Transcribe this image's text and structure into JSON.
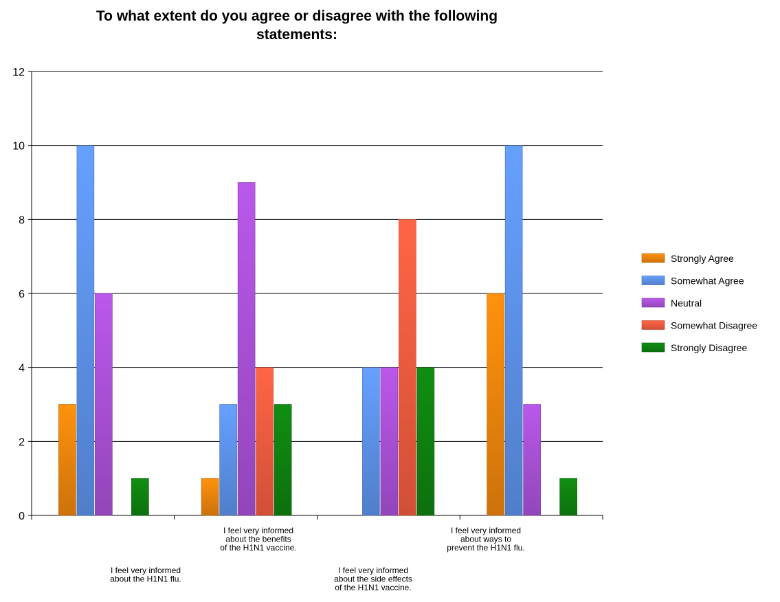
{
  "chart_data": {
    "type": "bar",
    "title_lines": [
      "To what extent do you agree or disagree with the following",
      "statements:"
    ],
    "xlabel": "",
    "ylabel": "",
    "ylim": [
      0,
      12
    ],
    "yticks": [
      0,
      2,
      4,
      6,
      8,
      10,
      12
    ],
    "grid": "horizontal",
    "legend_position": "right",
    "categories": [
      {
        "lines": [
          "I feel very informed",
          "about the H1N1 flu."
        ]
      },
      {
        "lines": [
          "I feel very informed",
          "about the benefits",
          "of the H1N1 vaccine."
        ]
      },
      {
        "lines": [
          "I feel very informed",
          "about the side effects",
          "of the H1N1 vaccine."
        ]
      },
      {
        "lines": [
          "I feel very informed",
          "about ways to",
          "prevent the H1N1 flu."
        ]
      }
    ],
    "series": [
      {
        "name": "Strongly Agree",
        "color": "#e8820c",
        "values": [
          3,
          1,
          0,
          6
        ]
      },
      {
        "name": "Somewhat Agree",
        "color": "#5b8fe6",
        "values": [
          10,
          3,
          4,
          10
        ]
      },
      {
        "name": "Neutral",
        "color": "#a64fd2",
        "values": [
          6,
          9,
          4,
          3
        ]
      },
      {
        "name": "Somewhat Disagree",
        "color": "#ef5a3e",
        "values": [
          0,
          4,
          8,
          0
        ]
      },
      {
        "name": "Strongly Disagree",
        "color": "#0f7f10",
        "values": [
          1,
          3,
          4,
          1
        ]
      }
    ]
  }
}
